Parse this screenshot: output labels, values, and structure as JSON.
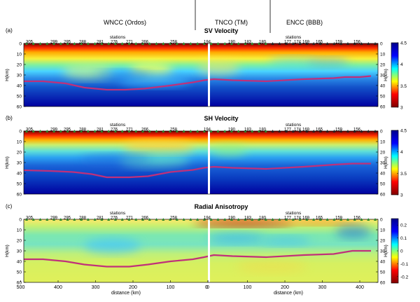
{
  "header": {
    "regions": [
      {
        "label": "WNCC  (Ordos)"
      },
      {
        "label": "TNCO  (TM)"
      },
      {
        "label": "ENCC  (BBB)"
      }
    ]
  },
  "chart_data": [
    {
      "type": "heatmap",
      "panel_label": "(a)",
      "title": "SV Velocity",
      "ylabel": "H(km)",
      "right_axis_label": "H(km)",
      "stations_labels": [
        "stations",
        "stations"
      ],
      "station_ids": [
        "305",
        "299",
        "295",
        "288",
        "281",
        "276",
        "271",
        "266",
        "258",
        "194",
        "190",
        "183",
        "180",
        "177",
        "174",
        "169",
        "165",
        "159",
        "156"
      ],
      "y_ticks": [
        0,
        10,
        20,
        30,
        40,
        50,
        60
      ],
      "ylim": [
        0,
        60
      ],
      "colorbar": {
        "min": 3,
        "max": 4.5,
        "ticks": [
          "4.5",
          "4",
          "3.5",
          "3"
        ],
        "colors": [
          "#7f0000",
          "#ff0000",
          "#ffff00",
          "#00ffff",
          "#0000ff",
          "#00008b"
        ]
      },
      "moho_depth_km": [
        [
          520,
          36
        ],
        [
          440,
          36
        ],
        [
          380,
          38
        ],
        [
          330,
          42
        ],
        [
          270,
          44
        ],
        [
          220,
          44
        ],
        [
          170,
          43
        ],
        [
          100,
          40
        ],
        [
          40,
          37
        ],
        [
          10,
          35
        ],
        [
          -10,
          34
        ],
        [
          -60,
          35
        ],
        [
          -150,
          36
        ],
        [
          -250,
          34
        ],
        [
          -330,
          33
        ],
        [
          -360,
          32
        ],
        [
          -400,
          32
        ],
        [
          -430,
          31
        ]
      ]
    },
    {
      "type": "heatmap",
      "panel_label": "(b)",
      "title": "SH Velocity",
      "ylabel": "H(km)",
      "right_axis_label": "H(km)",
      "stations_labels": [
        "stations",
        "stations"
      ],
      "station_ids": [
        "305",
        "299",
        "295",
        "288",
        "281",
        "276",
        "271",
        "266",
        "258",
        "194",
        "190",
        "183",
        "180",
        "177",
        "174",
        "169",
        "165",
        "159",
        "156"
      ],
      "y_ticks": [
        0,
        10,
        20,
        30,
        40,
        50,
        60
      ],
      "ylim": [
        0,
        60
      ],
      "colorbar": {
        "min": 3,
        "max": 4.5,
        "ticks": [
          "4.5",
          "4",
          "3.5",
          "3"
        ],
        "colors": [
          "#7f0000",
          "#ff0000",
          "#ffff00",
          "#00ffff",
          "#0000ff",
          "#00008b"
        ]
      },
      "moho_depth_km": [
        [
          520,
          37
        ],
        [
          420,
          38
        ],
        [
          360,
          39
        ],
        [
          310,
          41
        ],
        [
          270,
          44
        ],
        [
          210,
          44
        ],
        [
          160,
          43
        ],
        [
          100,
          39
        ],
        [
          40,
          37
        ],
        [
          10,
          35
        ],
        [
          -10,
          34
        ],
        [
          -60,
          35
        ],
        [
          -150,
          36
        ],
        [
          -250,
          34
        ],
        [
          -330,
          32
        ],
        [
          -380,
          31
        ],
        [
          -430,
          31
        ]
      ]
    },
    {
      "type": "heatmap",
      "panel_label": "(c)",
      "title": "Radial Anisotropy",
      "ylabel": "H(km)",
      "right_axis_label": "H(km)",
      "xlabel": [
        "distance (km)",
        "distance (km)"
      ],
      "stations_labels": [
        "stations",
        "stations"
      ],
      "station_ids": [
        "305",
        "299",
        "295",
        "288",
        "281",
        "276",
        "271",
        "266",
        "258",
        "194",
        "190",
        "183",
        "180",
        "177",
        "174",
        "169",
        "165",
        "159",
        "156"
      ],
      "y_ticks": [
        0,
        10,
        20,
        30,
        40,
        50,
        60
      ],
      "ylim": [
        0,
        60
      ],
      "x_ticks_left": [
        "500",
        "400",
        "300",
        "200",
        "100",
        "0"
      ],
      "x_ticks_right": [
        "400",
        "300",
        "200",
        "100",
        "0"
      ],
      "colorbar": {
        "min": -0.25,
        "max": 0.25,
        "ticks": [
          "0.2",
          "0.1",
          "0",
          "-0.1",
          "-0.2"
        ],
        "colors": [
          "#7f0000",
          "#ff0000",
          "#ffff00",
          "#00ffff",
          "#0000ff",
          "#00008b"
        ]
      },
      "moho_depth_km": [
        [
          520,
          38
        ],
        [
          440,
          38
        ],
        [
          380,
          40
        ],
        [
          330,
          43
        ],
        [
          270,
          45
        ],
        [
          210,
          45
        ],
        [
          160,
          43
        ],
        [
          100,
          40
        ],
        [
          40,
          38
        ],
        [
          10,
          36
        ],
        [
          -10,
          34
        ],
        [
          -60,
          35
        ],
        [
          -150,
          36
        ],
        [
          -250,
          34
        ],
        [
          -330,
          33
        ],
        [
          -380,
          30
        ],
        [
          -430,
          30
        ]
      ]
    }
  ]
}
